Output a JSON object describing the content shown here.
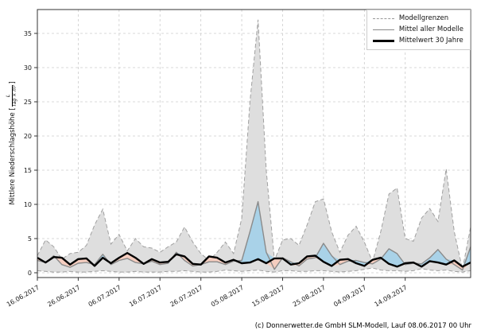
{
  "chart_data": {
    "type": "area",
    "title": "",
    "xlabel": "",
    "ylabel": "Mittlere Niederschlagshöhe [L/(Tag × m²)]",
    "ylabel_parts": {
      "prefix": "Mittlere Niederschlagshöhe [",
      "frac_num": "L",
      "frac_den": "Tag × m²",
      "suffix": "]"
    },
    "ylim": [
      0,
      38.5
    ],
    "y_ticks": [
      0,
      5,
      10,
      15,
      20,
      25,
      30,
      35
    ],
    "x_ticks": [
      "16.06.2017",
      "26.06.2017",
      "06.07.2017",
      "16.07.2017",
      "26.07.2017",
      "05.08.2017",
      "15.08.2017",
      "25.08.2017",
      "04.09.2017",
      "14.09.2017"
    ],
    "x_tick_interval_days": 10,
    "grid": true,
    "legend_position": "top-right",
    "days": [
      0,
      2,
      4,
      6,
      8,
      10,
      12,
      14,
      16,
      18,
      20,
      22,
      24,
      26,
      28,
      30,
      32,
      34,
      36,
      38,
      40,
      42,
      44,
      46,
      48,
      50,
      52,
      54,
      56,
      58,
      60,
      62,
      64,
      66,
      68,
      70,
      72,
      74,
      76,
      78,
      80,
      82,
      84,
      86,
      88,
      90,
      92,
      94,
      96,
      98,
      100,
      102,
      104,
      106
    ],
    "series": [
      {
        "name": "Modellgrenzen (obere Grenze)",
        "values": [
          2.5,
          4.8,
          3.8,
          2.0,
          2.8,
          3.0,
          4.0,
          7.0,
          9.3,
          4.2,
          5.6,
          3.2,
          5.0,
          3.8,
          3.6,
          3.0,
          3.8,
          4.5,
          6.7,
          4.5,
          2.8,
          1.8,
          3.0,
          4.5,
          2.8,
          8.0,
          25.0,
          37.0,
          15.0,
          1.8,
          4.8,
          5.0,
          4.0,
          7.0,
          10.4,
          10.8,
          6.0,
          3.0,
          5.5,
          6.8,
          4.5,
          1.6,
          6.0,
          11.5,
          12.4,
          5.0,
          4.6,
          8.0,
          9.4,
          7.5,
          15.2,
          6.0,
          0.5,
          6.7
        ]
      },
      {
        "name": "Modellgrenzen (untere Grenze)",
        "values": [
          0.3,
          0.2,
          0.1,
          0.1,
          0.2,
          0.1,
          0.1,
          0.2,
          0.3,
          0.2,
          0.1,
          0.1,
          0.2,
          0.1,
          0.1,
          0.1,
          0.2,
          0.2,
          0.3,
          0.2,
          0.1,
          0.1,
          0.2,
          0.4,
          0.3,
          0.2,
          0.3,
          0.4,
          0.2,
          0.1,
          0.3,
          0.3,
          0.2,
          0.2,
          0.3,
          0.3,
          0.2,
          0.1,
          0.2,
          0.3,
          0.5,
          0.7,
          0.4,
          0.3,
          0.3,
          0.2,
          0.3,
          0.6,
          0.4,
          0.3,
          0.4,
          0.2,
          0.1,
          0.3
        ]
      },
      {
        "name": "Mittel aller Modelle",
        "values": [
          1.8,
          1.5,
          2.5,
          1.2,
          0.8,
          1.4,
          1.5,
          1.2,
          2.7,
          1.2,
          1.8,
          2.1,
          1.5,
          1.3,
          1.7,
          1.2,
          1.4,
          3.0,
          1.8,
          1.0,
          1.2,
          1.6,
          1.6,
          1.2,
          1.7,
          1.8,
          6.0,
          10.4,
          3.0,
          0.5,
          2.2,
          1.6,
          1.0,
          2.0,
          2.2,
          4.3,
          2.5,
          1.2,
          1.7,
          1.8,
          1.5,
          1.3,
          2.0,
          3.5,
          2.8,
          1.2,
          1.4,
          1.3,
          2.2,
          3.4,
          2.0,
          1.2,
          0.4,
          3.8
        ]
      },
      {
        "name": "Mittelwert 30 Jahre",
        "values": [
          2.2,
          1.5,
          2.3,
          2.2,
          1.2,
          2.0,
          2.1,
          1.0,
          2.2,
          1.4,
          2.2,
          2.9,
          2.2,
          1.3,
          2.0,
          1.5,
          1.6,
          2.7,
          2.4,
          1.3,
          1.2,
          2.4,
          2.2,
          1.5,
          1.9,
          1.4,
          1.5,
          2.0,
          1.4,
          2.1,
          2.1,
          1.2,
          1.4,
          2.4,
          2.5,
          1.6,
          1.0,
          1.9,
          2.0,
          1.4,
          1.0,
          1.9,
          2.2,
          1.3,
          0.9,
          1.4,
          1.5,
          0.9,
          1.7,
          1.5,
          1.2,
          1.8,
          0.9,
          1.5
        ]
      }
    ],
    "legend": [
      {
        "label": "Modellgrenzen",
        "style": "dashed"
      },
      {
        "label": "Mittel aller Modelle",
        "style": "gray"
      },
      {
        "label": "Mittelwert 30 Jahre",
        "style": "black"
      }
    ],
    "colors": {
      "band": "#dedede",
      "bound_dash": "#a0a0a0",
      "above_mean_fill": "#a9d2e8",
      "below_mean_fill": "#f5cdbf",
      "model_mean_line": "#8a8a8a",
      "mean30_line": "#000000",
      "grid": "#cccccc"
    }
  },
  "footer": {
    "credit": "(c) Donnerwetter.de GmbH SLM-Modell, Lauf 08.06.2017 00 Uhr"
  }
}
